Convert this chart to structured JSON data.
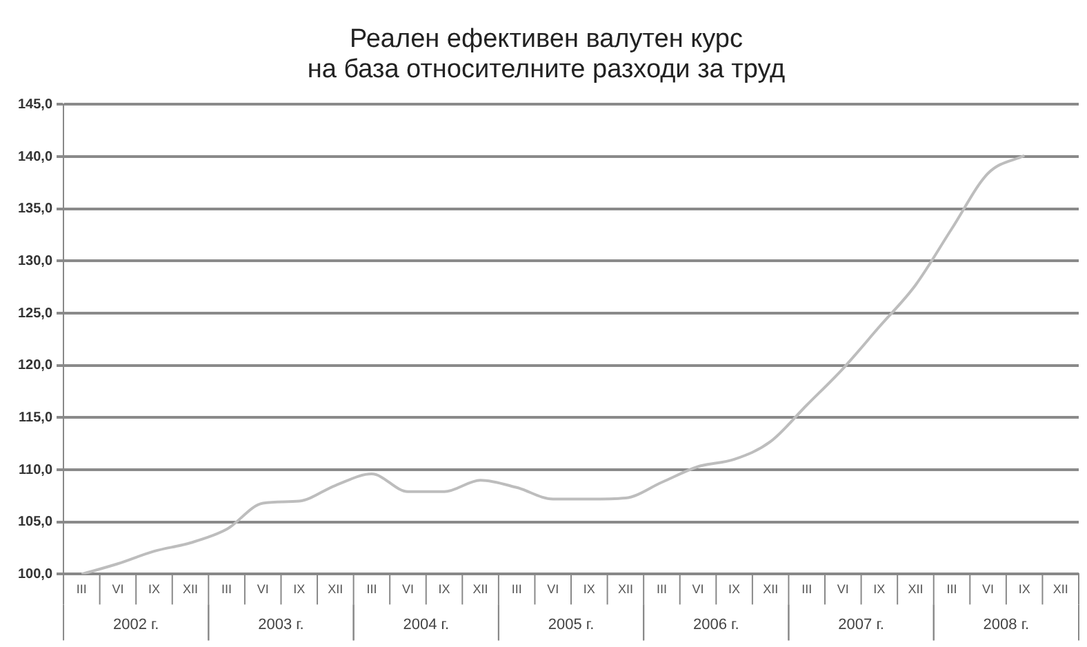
{
  "chart_data": {
    "type": "line",
    "title": "Реален ефективен валутен курс\nна база относителните разходи за труд",
    "categories": [
      "III",
      "VI",
      "IX",
      "XII",
      "III",
      "VI",
      "IX",
      "XII",
      "III",
      "VI",
      "IX",
      "XII",
      "III",
      "VI",
      "IX",
      "XII",
      "III",
      "VI",
      "IX",
      "XII",
      "III",
      "VI",
      "IX",
      "XII",
      "III",
      "VI",
      "IX",
      "XII"
    ],
    "series": [
      {
        "color": "#bdbdbd",
        "values": [
          100.0,
          101.0,
          102.2,
          103.0,
          104.3,
          106.8,
          107.0,
          108.5,
          109.6,
          107.9,
          107.9,
          109.0,
          108.3,
          107.2,
          107.2,
          107.3,
          108.8,
          110.3,
          111.0,
          112.7,
          116.2,
          119.7,
          123.7,
          127.7,
          133.1,
          138.4,
          140.1,
          null
        ]
      }
    ],
    "annotations": [
      "2002 г.",
      "2003 г.",
      "2004 г.",
      "2005 г.",
      "2006 г.",
      "2007 г.",
      "2008 г."
    ],
    "ylim": [
      100,
      145
    ],
    "yticks": [
      {
        "value": 100,
        "label": "100,0"
      },
      {
        "value": 105,
        "label": "105,0"
      },
      {
        "value": 110,
        "label": "110,0"
      },
      {
        "value": 115,
        "label": "115,0"
      },
      {
        "value": 120,
        "label": "120,0"
      },
      {
        "value": 125,
        "label": "125,0"
      },
      {
        "value": 130,
        "label": "130,0"
      },
      {
        "value": 135,
        "label": "135,0"
      },
      {
        "value": 140,
        "label": "140,0"
      },
      {
        "value": 145,
        "label": "145,0"
      }
    ],
    "grid": "y",
    "legend": false,
    "marker": "none",
    "line_style": "solid"
  }
}
